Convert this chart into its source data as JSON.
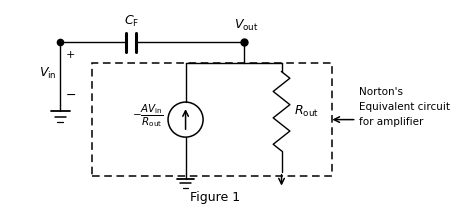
{
  "bg_color": "#ffffff",
  "line_color": "#000000",
  "figure_title": "Figure 1",
  "norton_text": "Norton's\nEquivalent circuit\nfor amplifier",
  "label_Vin": "$V_\\mathrm{in}$",
  "label_Vout": "$V_\\mathrm{out}$",
  "label_CF": "$C_\\mathrm{F}$",
  "label_current": "$-\\dfrac{AV_\\mathrm{in}}{R_\\mathrm{out}}$",
  "label_Rout": "$R_\\mathrm{out}$",
  "xlim": [
    0,
    10
  ],
  "ylim": [
    0,
    5
  ]
}
